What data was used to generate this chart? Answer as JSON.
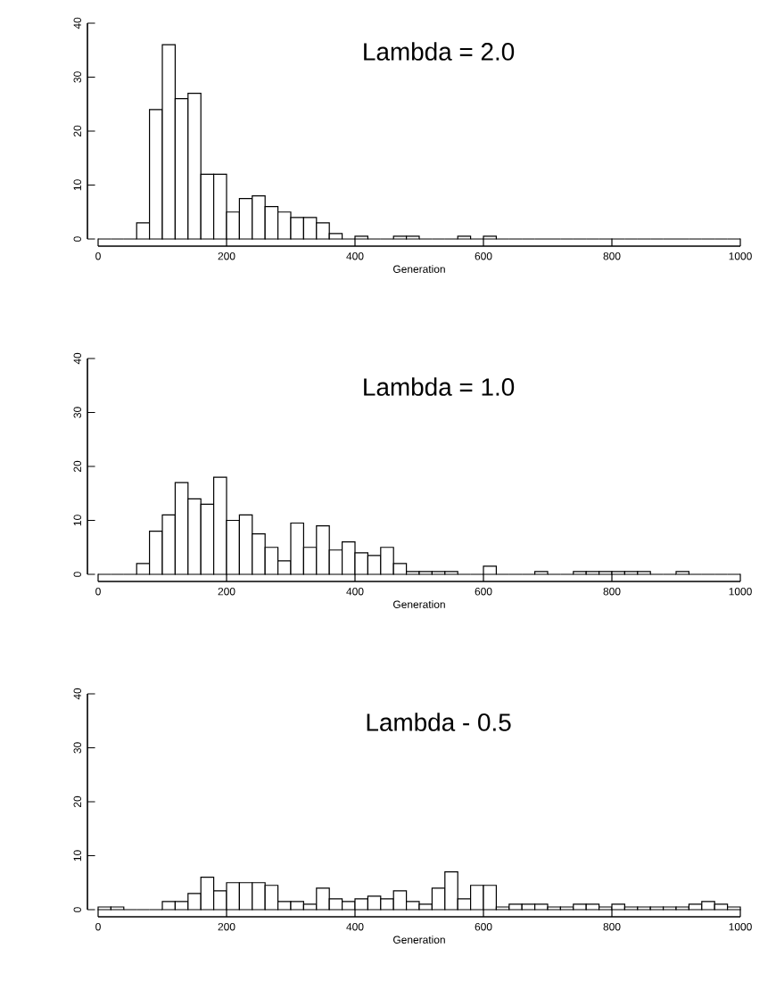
{
  "chart_data": [
    {
      "type": "histogram",
      "title": "Lambda = 2.0",
      "xlabel": "Generation",
      "xlim": [
        0,
        1000
      ],
      "ylim": [
        0,
        40
      ],
      "xticks": [
        0,
        200,
        400,
        600,
        800,
        1000
      ],
      "yticks": [
        0,
        10,
        20,
        30,
        40
      ],
      "bins": [
        0,
        20,
        40,
        60,
        80,
        100,
        120,
        140,
        160,
        180,
        200,
        220,
        240,
        260,
        280,
        300,
        320,
        340,
        360,
        380,
        400,
        420,
        440,
        460,
        480,
        500,
        520,
        540,
        560,
        580,
        600,
        620,
        640,
        660,
        680,
        700,
        720,
        740,
        760,
        780,
        800,
        820,
        840,
        860,
        880,
        900,
        920,
        940,
        960,
        980,
        1000
      ],
      "values": [
        0,
        0,
        0,
        3,
        24,
        36,
        26,
        27,
        12,
        12,
        5,
        7.5,
        8,
        6,
        5,
        4,
        4,
        3,
        1,
        0,
        0.5,
        0,
        0,
        0.5,
        0.5,
        0,
        0,
        0,
        0.5,
        0,
        0.5,
        0,
        0,
        0,
        0,
        0,
        0,
        0,
        0,
        0,
        0,
        0,
        0,
        0,
        0,
        0,
        0,
        0,
        0,
        0
      ]
    },
    {
      "type": "histogram",
      "title": "Lambda = 1.0",
      "xlabel": "Generation",
      "xlim": [
        0,
        1000
      ],
      "ylim": [
        0,
        40
      ],
      "xticks": [
        0,
        200,
        400,
        600,
        800,
        1000
      ],
      "yticks": [
        0,
        10,
        20,
        30,
        40
      ],
      "bins": [
        0,
        20,
        40,
        60,
        80,
        100,
        120,
        140,
        160,
        180,
        200,
        220,
        240,
        260,
        280,
        300,
        320,
        340,
        360,
        380,
        400,
        420,
        440,
        460,
        480,
        500,
        520,
        540,
        560,
        580,
        600,
        620,
        640,
        660,
        680,
        700,
        720,
        740,
        760,
        780,
        800,
        820,
        840,
        860,
        880,
        900,
        920,
        940,
        960,
        980,
        1000
      ],
      "values": [
        0,
        0,
        0,
        2,
        8,
        11,
        17,
        14,
        13,
        18,
        10,
        11,
        7.5,
        5,
        2.5,
        9.5,
        5,
        9,
        4.5,
        6,
        4,
        3.5,
        5,
        2,
        0.5,
        0.5,
        0.5,
        0.5,
        0,
        0,
        1.5,
        0,
        0,
        0,
        0.5,
        0,
        0,
        0.5,
        0.5,
        0.5,
        0.5,
        0.5,
        0.5,
        0,
        0,
        0.5,
        0,
        0,
        0,
        0
      ]
    },
    {
      "type": "histogram",
      "title": "Lambda - 0.5",
      "xlabel": "Generation",
      "xlim": [
        0,
        1000
      ],
      "ylim": [
        0,
        40
      ],
      "xticks": [
        0,
        200,
        400,
        600,
        800,
        1000
      ],
      "yticks": [
        0,
        10,
        20,
        30,
        40
      ],
      "bins": [
        0,
        20,
        40,
        60,
        80,
        100,
        120,
        140,
        160,
        180,
        200,
        220,
        240,
        260,
        280,
        300,
        320,
        340,
        360,
        380,
        400,
        420,
        440,
        460,
        480,
        500,
        520,
        540,
        560,
        580,
        600,
        620,
        640,
        660,
        680,
        700,
        720,
        740,
        760,
        780,
        800,
        820,
        840,
        860,
        880,
        900,
        920,
        940,
        960,
        980,
        1000
      ],
      "values": [
        0.5,
        0.5,
        0,
        0,
        0,
        1.5,
        1.5,
        3,
        6,
        3.5,
        5,
        5,
        5,
        4.5,
        1.5,
        1.5,
        1,
        4,
        2,
        1.5,
        2,
        2.5,
        2,
        3.5,
        1.5,
        1,
        4,
        7,
        2,
        4.5,
        4.5,
        0.5,
        1,
        1,
        1,
        0.5,
        0.5,
        1,
        1,
        0.5,
        1,
        0.5,
        0.5,
        0.5,
        0.5,
        0.5,
        1,
        1.5,
        1,
        0.5
      ]
    }
  ]
}
